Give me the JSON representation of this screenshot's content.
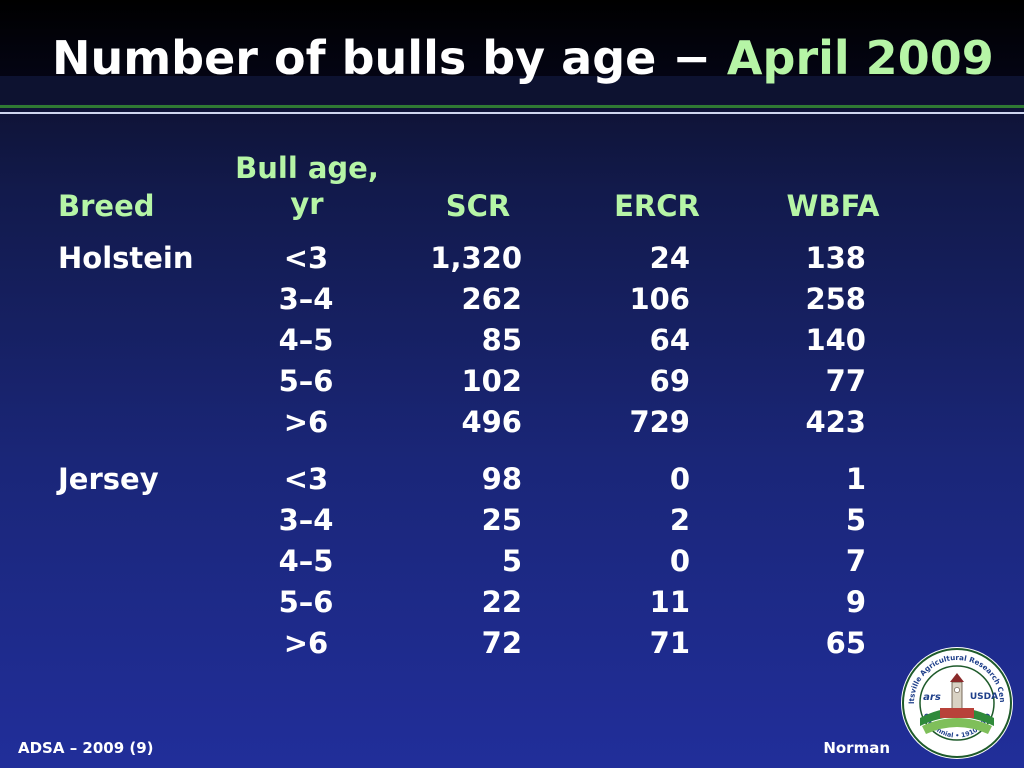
{
  "slide": {
    "title_main": "Number of bulls by age −",
    "title_accent": "April 2009",
    "footer_left": "ADSA – 2009 (9)",
    "footer_right": "Norman"
  },
  "table": {
    "headers": {
      "breed": "Breed",
      "age_line1": "Bull age,",
      "age_line2": "yr",
      "scr": "SCR",
      "ercr": "ERCR",
      "wbfa": "WBFA"
    },
    "groups": [
      {
        "breed": "Holstein",
        "rows": [
          {
            "age": "<3",
            "scr": "1,320",
            "ercr": "24",
            "wbfa": "138"
          },
          {
            "age": "3–4",
            "scr": "262",
            "ercr": "106",
            "wbfa": "258"
          },
          {
            "age": "4–5",
            "scr": "85",
            "ercr": "64",
            "wbfa": "140"
          },
          {
            "age": "5–6",
            "scr": "102",
            "ercr": "69",
            "wbfa": "77"
          },
          {
            "age": ">6",
            "scr": "496",
            "ercr": "729",
            "wbfa": "423"
          }
        ]
      },
      {
        "breed": "Jersey",
        "rows": [
          {
            "age": "<3",
            "scr": "98",
            "ercr": "0",
            "wbfa": "1"
          },
          {
            "age": "3–4",
            "scr": "25",
            "ercr": "2",
            "wbfa": "5"
          },
          {
            "age": "4–5",
            "scr": "5",
            "ercr": "0",
            "wbfa": "7"
          },
          {
            "age": "5–6",
            "scr": "22",
            "ercr": "11",
            "wbfa": "9"
          },
          {
            "age": ">6",
            "scr": "72",
            "ercr": "71",
            "wbfa": "65"
          }
        ]
      }
    ]
  },
  "seal": {
    "ring_text": "Beltsville Agricultural Research Center",
    "bottom_text": "Centennial • 1910-2010",
    "agency": "USDA"
  },
  "colors": {
    "accent_green": "#b6f5a6",
    "background_top": "#0b0b1c",
    "background_bottom": "#212e9a"
  }
}
